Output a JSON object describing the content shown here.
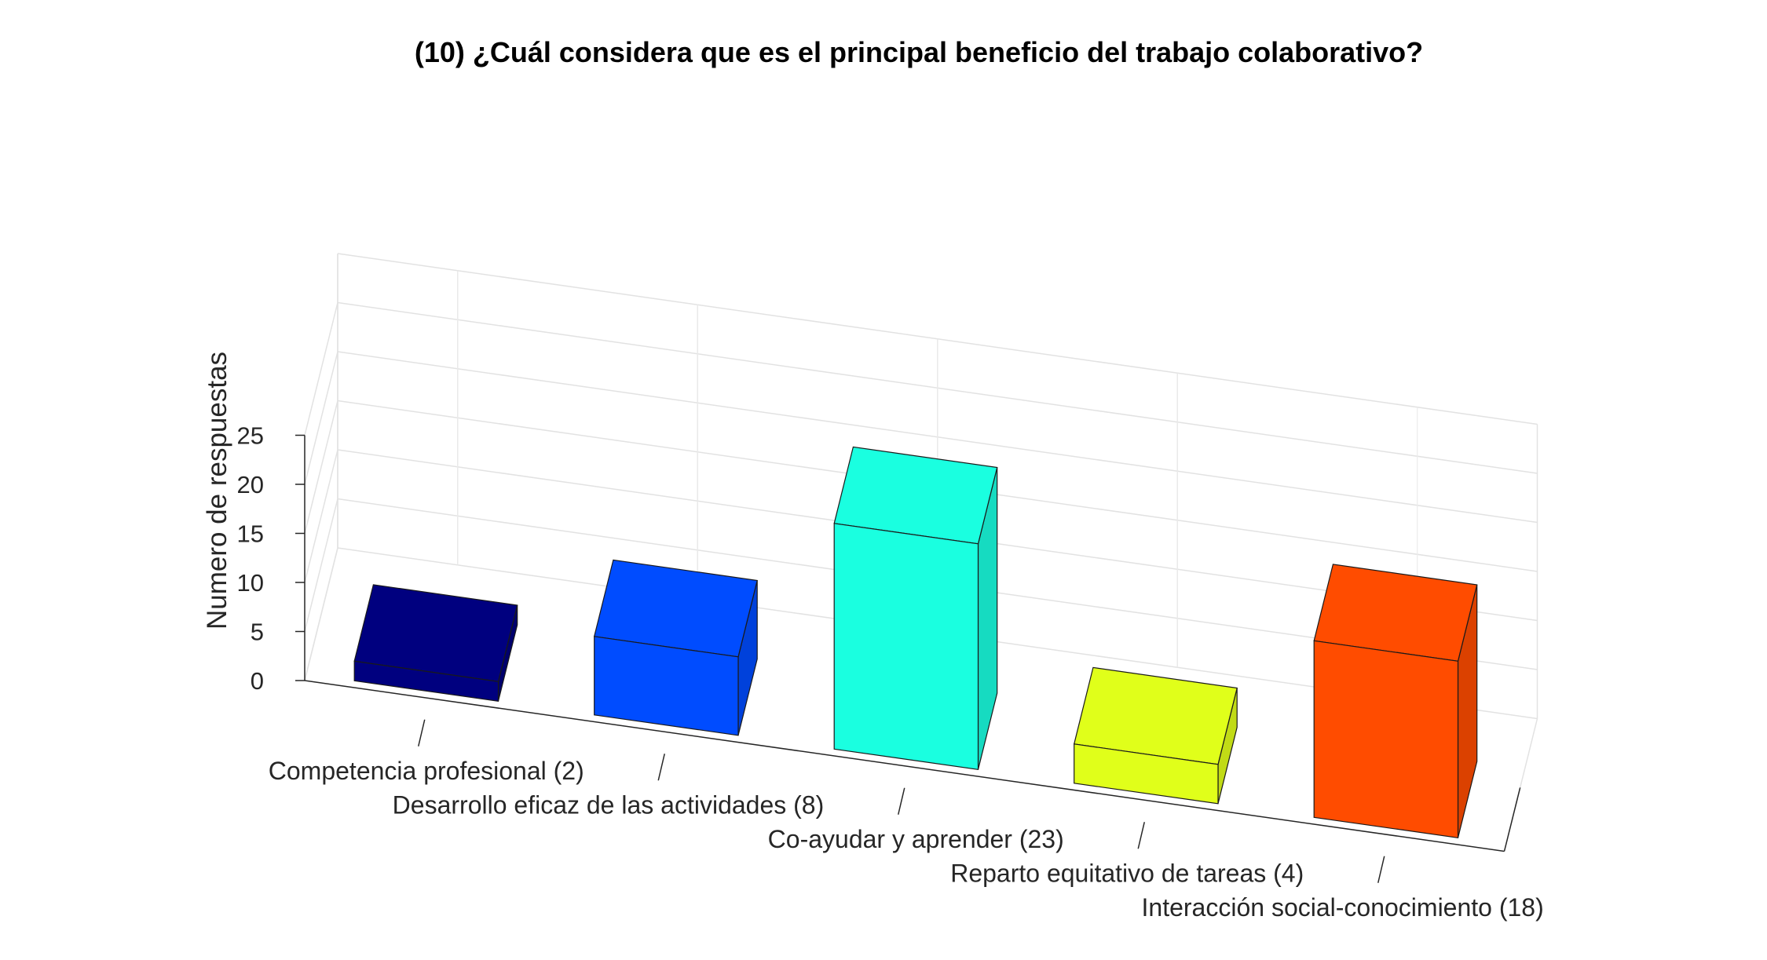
{
  "chart_data": {
    "type": "bar",
    "title": "(10) ¿Cuál considera que es el principal beneficio del trabajo colaborativo?",
    "xlabel": "",
    "ylabel": "Numero de respuestas",
    "categories": [
      "Competencia profesional (2)",
      "Desarrollo eficaz de las actividades (8)",
      "Co-ayudar y aprender (23)",
      "Reparto equitativo de tareas (4)",
      "Interacción social-conocimiento (18)"
    ],
    "values": [
      2,
      8,
      23,
      4,
      18
    ],
    "colors": [
      "#00007F",
      "#004CFF",
      "#1AFFE0",
      "#E0FF1A",
      "#FF4C00"
    ],
    "ylim": [
      0,
      25
    ],
    "yticks": [
      0,
      5,
      10,
      15,
      20,
      25
    ],
    "grid": true,
    "style": "3d"
  }
}
